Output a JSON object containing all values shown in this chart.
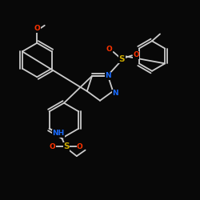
{
  "background_color": "#080808",
  "bond_color": "#cccccc",
  "atom_colors": {
    "O": "#ff3300",
    "N": "#1a6bff",
    "S": "#ccaa00",
    "C": "#cccccc"
  },
  "figsize": [
    2.5,
    2.5
  ],
  "dpi": 100,
  "lw": 1.3,
  "fs": 6.5
}
